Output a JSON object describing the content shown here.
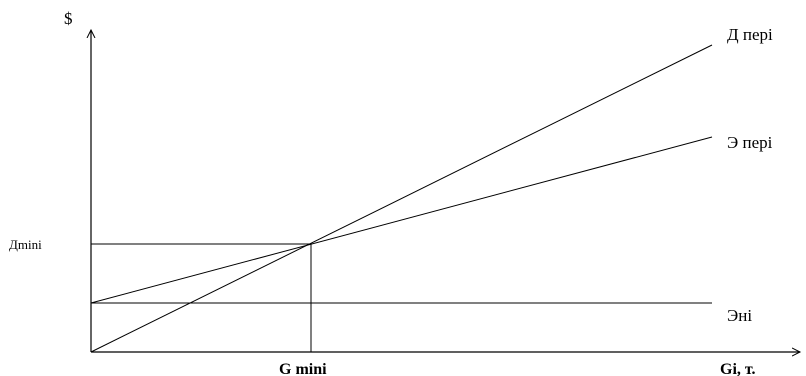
{
  "labels": {
    "y_axis": "$",
    "x_axis": "Gi, т.",
    "x_marker": "G mini",
    "y_marker": "Дmini",
    "line_d": "Д пері",
    "line_e": "Э пері",
    "line_eni": "Эні"
  },
  "colors": {
    "lines": "#000000",
    "background": "#ffffff"
  }
}
